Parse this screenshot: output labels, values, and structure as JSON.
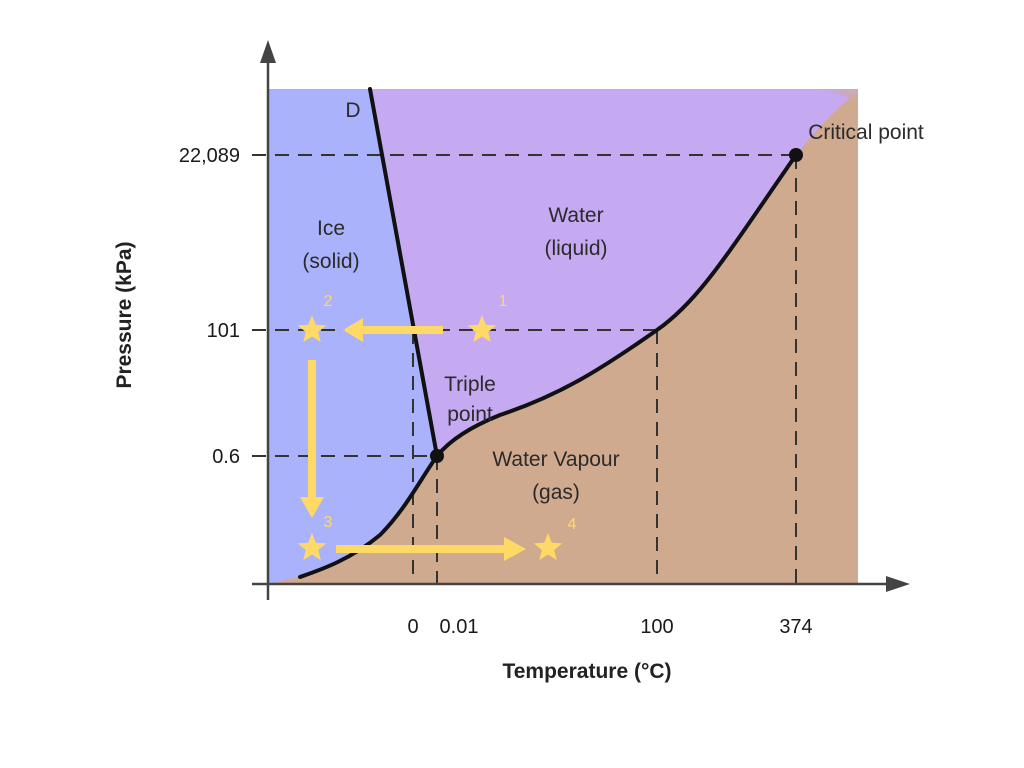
{
  "chart_data": {
    "type": "phase-diagram",
    "title": "",
    "xlabel": "Temperature (°C)",
    "ylabel": "Pressure (kPa)",
    "x_ticks": [
      "0",
      "0.01",
      "100",
      "374"
    ],
    "y_ticks": [
      "22,089",
      "101",
      "0.6"
    ],
    "regions": [
      {
        "label_line1": "Ice",
        "label_line2": "(solid)",
        "color": "#aab2fb"
      },
      {
        "label_line1": "Water",
        "label_line2": "(liquid)",
        "color": "#c5a9f1"
      },
      {
        "label_line1": "Water Vapour",
        "label_line2": "(gas)",
        "color": "#d0aa8e"
      }
    ],
    "points": {
      "triple_point": {
        "label_line1": "Triple",
        "label_line2": "point",
        "temperature": 0.01,
        "pressure": 0.6
      },
      "critical_point": {
        "label": "Critical point",
        "temperature": 374,
        "pressure": 22089
      },
      "curve_label": "D"
    },
    "path": {
      "color": "#ffd966",
      "stars": [
        {
          "number": "1",
          "temperature_region": "liquid",
          "pressure": 101
        },
        {
          "number": "2",
          "temperature_region": "solid",
          "pressure": 101
        },
        {
          "number": "3",
          "temperature_region": "solid",
          "pressure": "below 0.6"
        },
        {
          "number": "4",
          "temperature_region": "gas",
          "pressure": "below 0.6"
        }
      ]
    }
  }
}
